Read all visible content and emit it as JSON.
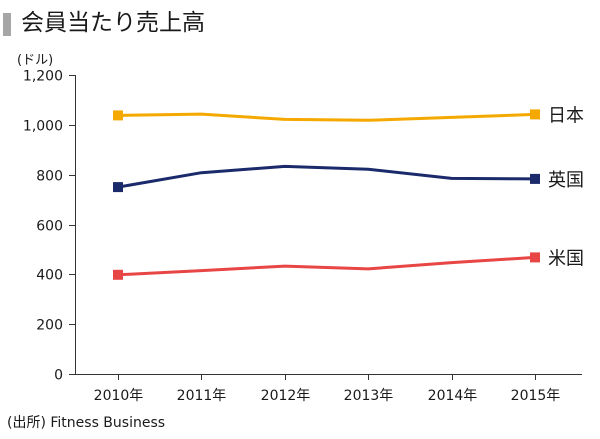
{
  "title": "会員当たり売上高",
  "source": "(出所) Fitness Business",
  "chart_data": {
    "type": "line",
    "unit_label": "(ドル)",
    "categories": [
      "2010年",
      "2011年",
      "2012年",
      "2013年",
      "2014年",
      "2015年"
    ],
    "ylim": [
      0,
      1200
    ],
    "yticks": [
      0,
      200,
      400,
      600,
      800,
      1000,
      1200
    ],
    "ytick_labels": [
      "0",
      "200",
      "400",
      "600",
      "800",
      "1,000",
      "1,200"
    ],
    "grid": false,
    "legend": "labels at line ends (right)",
    "series": [
      {
        "name": "日本",
        "color": "#f5a800",
        "values": [
          1038,
          1043,
          1022,
          1018,
          1030,
          1042
        ]
      },
      {
        "name": "英国",
        "color": "#1b2a6b",
        "values": [
          750,
          808,
          833,
          822,
          785,
          783
        ]
      },
      {
        "name": "米国",
        "color": "#e84545",
        "values": [
          398,
          415,
          433,
          422,
          447,
          468
        ]
      }
    ]
  }
}
